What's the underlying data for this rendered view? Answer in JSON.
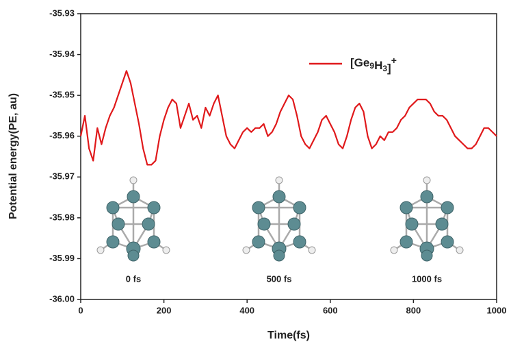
{
  "chart_data": {
    "type": "line",
    "x_label": "Time(fs)",
    "y_label": "Potential energy(PE, au)",
    "x": [
      0,
      10,
      20,
      30,
      40,
      50,
      60,
      70,
      80,
      90,
      100,
      110,
      120,
      130,
      140,
      150,
      160,
      170,
      180,
      190,
      200,
      210,
      220,
      230,
      240,
      250,
      260,
      270,
      280,
      290,
      300,
      310,
      320,
      330,
      340,
      350,
      360,
      370,
      380,
      390,
      400,
      410,
      420,
      430,
      440,
      450,
      460,
      470,
      480,
      490,
      500,
      510,
      520,
      530,
      540,
      550,
      560,
      570,
      580,
      590,
      600,
      610,
      620,
      630,
      640,
      650,
      660,
      670,
      680,
      690,
      700,
      710,
      720,
      730,
      740,
      750,
      760,
      770,
      780,
      790,
      800,
      810,
      820,
      830,
      840,
      850,
      860,
      870,
      880,
      890,
      900,
      910,
      920,
      930,
      940,
      950,
      960,
      970,
      980,
      990,
      1000
    ],
    "series": [
      {
        "name": "[Ge9H3]+",
        "color": "#e0191b",
        "values": [
          -35.96,
          -35.955,
          -35.963,
          -35.966,
          -35.958,
          -35.962,
          -35.958,
          -35.955,
          -35.953,
          -35.95,
          -35.947,
          -35.944,
          -35.947,
          -35.952,
          -35.957,
          -35.963,
          -35.967,
          -35.967,
          -35.966,
          -35.96,
          -35.956,
          -35.953,
          -35.951,
          -35.952,
          -35.958,
          -35.955,
          -35.952,
          -35.956,
          -35.955,
          -35.958,
          -35.953,
          -35.955,
          -35.952,
          -35.95,
          -35.955,
          -35.96,
          -35.962,
          -35.963,
          -35.961,
          -35.959,
          -35.958,
          -35.959,
          -35.958,
          -35.958,
          -35.957,
          -35.96,
          -35.959,
          -35.957,
          -35.954,
          -35.952,
          -35.95,
          -35.951,
          -35.955,
          -35.96,
          -35.962,
          -35.963,
          -35.961,
          -35.959,
          -35.956,
          -35.955,
          -35.957,
          -35.959,
          -35.962,
          -35.963,
          -35.96,
          -35.956,
          -35.953,
          -35.952,
          -35.954,
          -35.96,
          -35.963,
          -35.962,
          -35.96,
          -35.961,
          -35.959,
          -35.959,
          -35.958,
          -35.956,
          -35.955,
          -35.953,
          -35.952,
          -35.951,
          -35.951,
          -35.951,
          -35.952,
          -35.954,
          -35.955,
          -35.955,
          -35.956,
          -35.958,
          -35.96,
          -35.961,
          -35.962,
          -35.963,
          -35.963,
          -35.962,
          -35.96,
          -35.958,
          -35.958,
          -35.959,
          -35.96
        ]
      }
    ],
    "xlim": [
      0,
      1000
    ],
    "xticks": [
      0,
      200,
      400,
      600,
      800,
      1000
    ],
    "ylim": [
      -36,
      -35.93
    ],
    "yticks": [
      {
        "value": -36,
        "label": "-36.00"
      },
      -35.99,
      -35.98,
      -35.97,
      -35.96,
      -35.95,
      -35.94,
      -35.93
    ],
    "annotations": [
      "0 fs",
      "500 fs",
      "1000 fs"
    ],
    "legend": "upper right"
  }
}
